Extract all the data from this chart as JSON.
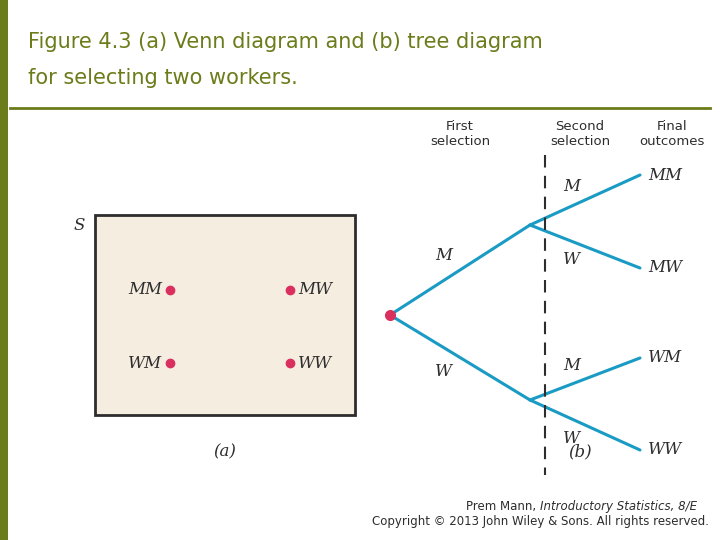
{
  "title_line1": "Figure 4.3 (a) Venn diagram and (b) tree diagram",
  "title_line2": "for selecting two workers.",
  "title_color": "#6b7c1a",
  "bg_color": "#ffffff",
  "slide_bar_color": "#6b7c1a",
  "venn_bg": "#f5ede0",
  "venn_border": "#2d2d2d",
  "dot_color": "#d93060",
  "tree_line_color": "#1a9bc4",
  "venn_S_label": "S",
  "venn_a_label": "(a)",
  "tree_b_label": "(b)",
  "header_first": "First\nselection",
  "header_second": "Second\nselection",
  "header_outcomes": "Final\noutcomes",
  "footer_normal": "Prem Mann, ",
  "footer_italic": "Introductory Statistics, 8/E",
  "footer_line2": "Copyright © 2013 John Wiley & Sons. All rights reserved."
}
